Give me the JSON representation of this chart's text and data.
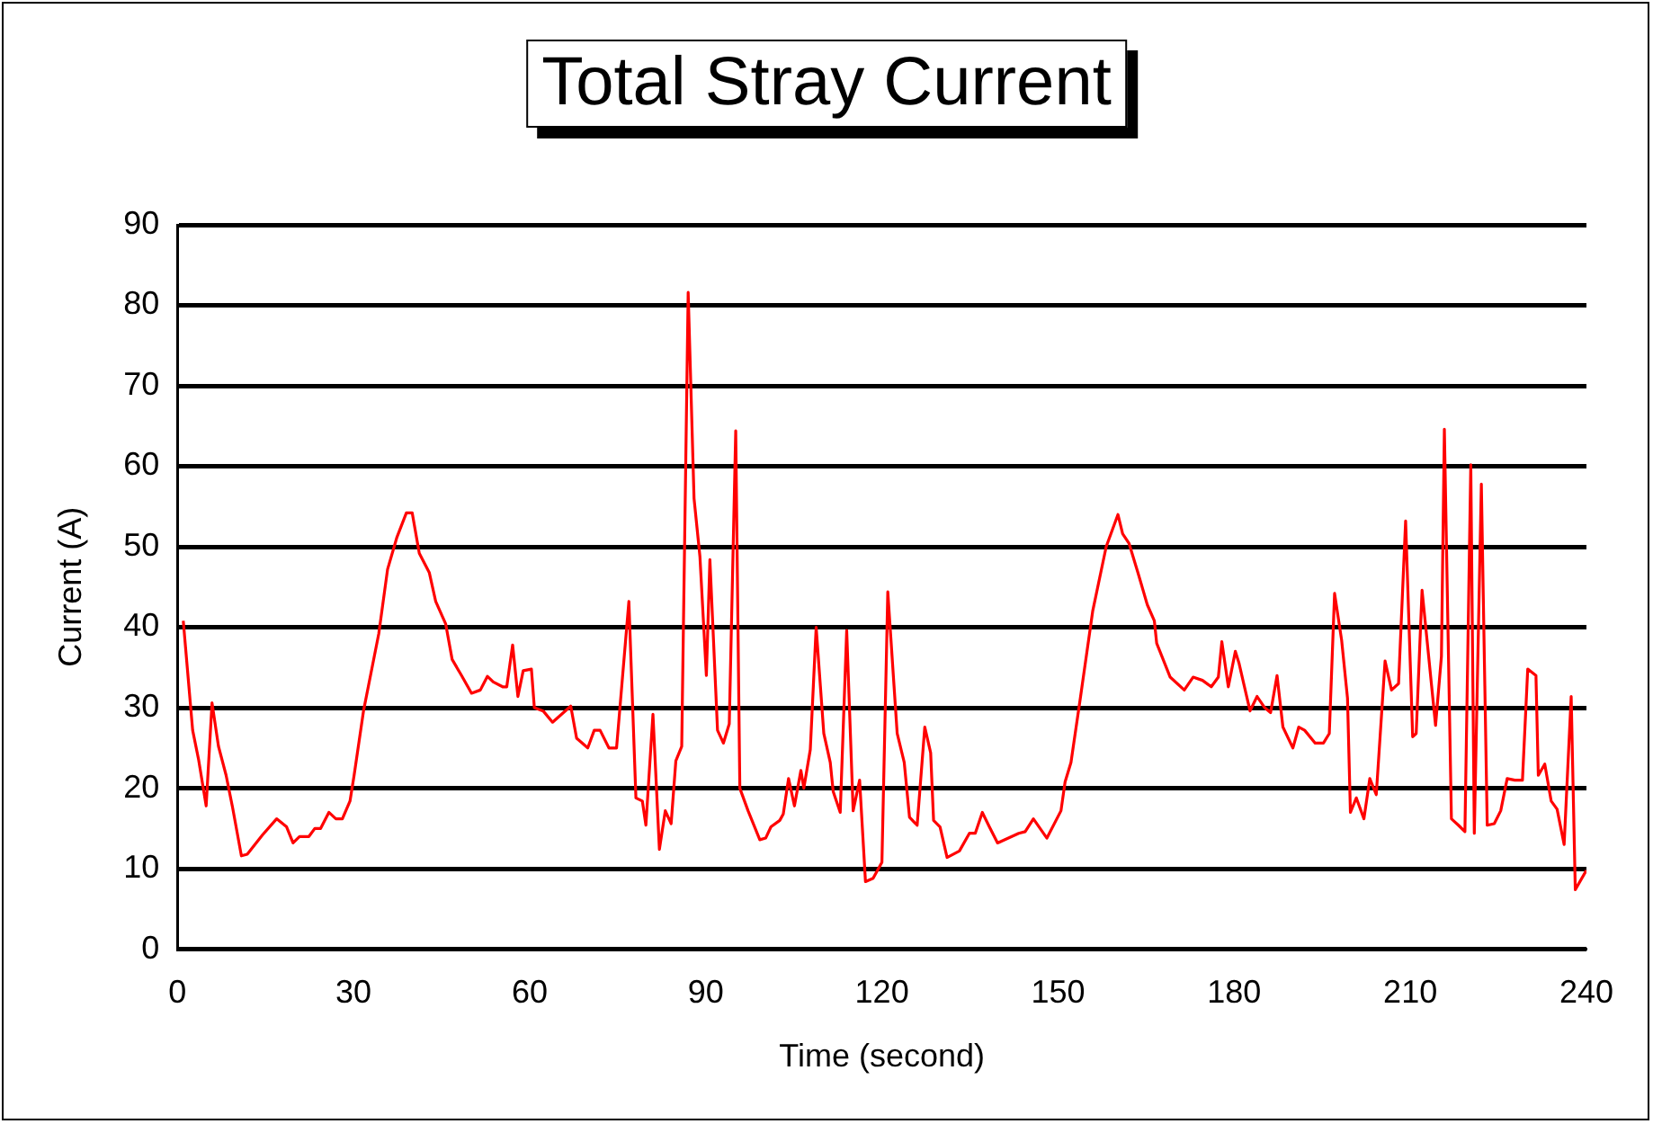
{
  "chart_data": {
    "type": "line",
    "title": "Total Stray Current",
    "xlabel": "Time (second)",
    "ylabel": "Current (A)",
    "xlim": [
      0,
      240
    ],
    "xticks": [
      0,
      30,
      60,
      90,
      120,
      150,
      180,
      210,
      240
    ],
    "ylim": [
      0,
      90
    ],
    "yticks": [
      0,
      10,
      20,
      30,
      40,
      50,
      60,
      70,
      80,
      90
    ],
    "grid": "y",
    "legend": false,
    "marker": "none",
    "line_style": "solid",
    "series": [
      {
        "color": "#ff0000",
        "x": [
          1.0,
          2.6,
          3.6,
          4.9,
          5.9,
          7.0,
          8.3,
          9.4,
          10.9,
          11.9,
          14.5,
          16.9,
          18.6,
          19.7,
          20.8,
          22.4,
          23.4,
          24.4,
          25.8,
          27.0,
          28.1,
          29.4,
          30.1,
          31.7,
          34.3,
          35.8,
          37.4,
          39.0,
          40.0,
          41.2,
          42.9,
          44.0,
          45.7,
          46.8,
          48.4,
          50.1,
          51.6,
          52.8,
          53.8,
          55.4,
          56.1,
          57.1,
          58.0,
          58.9,
          60.3,
          60.8,
          62.3,
          63.9,
          67.0,
          68.0,
          69.9,
          71.0,
          72.0,
          73.5,
          74.8,
          76.9,
          78.1,
          79.2,
          79.8,
          81.0,
          82.1,
          83.1,
          84.1,
          84.9,
          85.9,
          87.0,
          88.0,
          89.0,
          90.1,
          90.7,
          92.0,
          93.0,
          94.0,
          95.1,
          95.8,
          97.2,
          99.2,
          100.2,
          101.1,
          102.6,
          103.2,
          104.1,
          105.1,
          106.2,
          106.7,
          107.8,
          108.8,
          110.1,
          111.2,
          111.7,
          112.9,
          114.0,
          115.1,
          116.2,
          117.2,
          118.5,
          119.7,
          120.0,
          121.0,
          122.6,
          123.8,
          124.7,
          126.0,
          127.3,
          128.3,
          128.8,
          129.9,
          131.1,
          133.2,
          134.9,
          135.9,
          137.1,
          138.3,
          139.7,
          143.3,
          144.4,
          145.8,
          148.1,
          150.5,
          151.2,
          152.2,
          153.8,
          155.9,
          158.2,
          160.2,
          161.0,
          162.1,
          163.6,
          165.2,
          166.4,
          166.8,
          169.1,
          171.5,
          173.0,
          174.6,
          176.1,
          177.3,
          177.9,
          179.0,
          180.2,
          180.8,
          182.7,
          183.9,
          185.2,
          186.2,
          187.3,
          188.3,
          190.0,
          191.0,
          192.0,
          193.8,
          195.2,
          196.2,
          197.1,
          198.3,
          199.3,
          199.8,
          200.8,
          202.1,
          203.1,
          204.2,
          205.7,
          206.8,
          208.0,
          209.2,
          210.4,
          211.0,
          212.0,
          214.3,
          215.3,
          215.8,
          217.0,
          218.2,
          219.3,
          220.3,
          220.9,
          222.1,
          223.1,
          224.3,
          225.4,
          226.5,
          227.8,
          229.1,
          230.0,
          231.4,
          231.8,
          232.9,
          234.0,
          235.0,
          236.2,
          237.4,
          238.1,
          240.0
        ],
        "values": [
          40.8,
          27.2,
          23.6,
          17.8,
          30.6,
          25.2,
          21.6,
          17.6,
          11.6,
          11.8,
          14.2,
          16.2,
          15.2,
          13.2,
          14.0,
          14.0,
          15.0,
          15.0,
          17.0,
          16.2,
          16.2,
          18.4,
          21.6,
          29.6,
          39.2,
          47.2,
          51.2,
          54.2,
          54.2,
          49.2,
          46.8,
          43.2,
          40.4,
          36.0,
          34.0,
          31.8,
          32.2,
          33.9,
          33.2,
          32.6,
          32.6,
          37.8,
          31.4,
          34.6,
          34.8,
          30.0,
          29.6,
          28.2,
          30.2,
          26.2,
          25.0,
          27.2,
          27.2,
          25.0,
          25.0,
          43.2,
          18.8,
          18.4,
          15.4,
          29.2,
          12.4,
          17.2,
          15.6,
          23.4,
          25.2,
          81.6,
          56.0,
          48.8,
          34.0,
          48.4,
          27.2,
          25.6,
          28.0,
          64.4,
          20.0,
          17.2,
          13.6,
          13.8,
          15.2,
          16.0,
          16.8,
          21.2,
          17.8,
          22.2,
          20.0,
          24.8,
          40.0,
          26.8,
          23.2,
          19.6,
          17.0,
          39.6,
          17.2,
          21.0,
          8.4,
          8.8,
          10.4,
          10.8,
          44.4,
          26.8,
          23.2,
          16.4,
          15.4,
          27.6,
          24.4,
          16.0,
          15.2,
          11.4,
          12.2,
          14.4,
          14.4,
          17.0,
          15.2,
          13.2,
          14.4,
          14.6,
          16.2,
          13.8,
          17.2,
          20.8,
          23.2,
          31.2,
          42.0,
          50.0,
          54.0,
          51.6,
          50.4,
          46.8,
          42.8,
          40.8,
          38.0,
          33.8,
          32.2,
          33.8,
          33.4,
          32.6,
          33.8,
          38.2,
          32.6,
          37.0,
          35.6,
          29.6,
          31.4,
          30.0,
          29.4,
          34.0,
          27.6,
          25.0,
          27.6,
          27.2,
          25.6,
          25.6,
          26.8,
          44.2,
          38.4,
          31.2,
          17.0,
          18.8,
          16.2,
          21.2,
          19.2,
          35.8,
          32.2,
          33.0,
          53.2,
          26.4,
          26.8,
          44.6,
          27.8,
          36.4,
          64.6,
          16.2,
          15.4,
          14.6,
          60.2,
          14.4,
          57.8,
          15.4,
          15.6,
          17.2,
          21.2,
          21.0,
          21.0,
          34.8,
          34.0,
          21.6,
          23.0,
          18.4,
          17.4,
          13.0,
          31.4,
          7.4,
          9.8
        ]
      }
    ]
  }
}
